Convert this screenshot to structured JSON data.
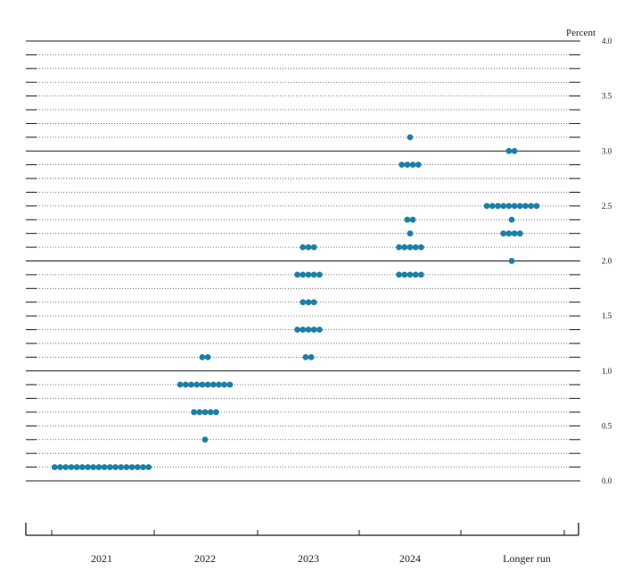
{
  "chart_data": {
    "type": "scatter",
    "title": "",
    "ylabel": "Percent",
    "xlabel": "",
    "ylim": [
      0,
      4
    ],
    "y_ticks": [
      "0.0",
      "0.5",
      "1.0",
      "1.5",
      "2.0",
      "2.5",
      "3.0",
      "3.5",
      "4.0"
    ],
    "minor_step": 0.125,
    "solid_gridlines_at": [
      0,
      1,
      2,
      3,
      4
    ],
    "categories": [
      "2021",
      "2022",
      "2023",
      "2024",
      "Longer run"
    ],
    "dot_color": "#1b7fa6",
    "series": [
      {
        "category": "2021",
        "points": [
          {
            "y": 0.125,
            "count": 18
          }
        ]
      },
      {
        "category": "2022",
        "points": [
          {
            "y": 0.375,
            "count": 1
          },
          {
            "y": 0.625,
            "count": 5
          },
          {
            "y": 0.875,
            "count": 10
          },
          {
            "y": 1.125,
            "count": 2
          }
        ]
      },
      {
        "category": "2023",
        "points": [
          {
            "y": 1.125,
            "count": 2
          },
          {
            "y": 1.375,
            "count": 5
          },
          {
            "y": 1.625,
            "count": 3
          },
          {
            "y": 1.875,
            "count": 5
          },
          {
            "y": 2.125,
            "count": 3
          }
        ]
      },
      {
        "category": "2024",
        "points": [
          {
            "y": 1.875,
            "count": 5
          },
          {
            "y": 2.125,
            "count": 5
          },
          {
            "y": 2.25,
            "count": 1
          },
          {
            "y": 2.375,
            "count": 2
          },
          {
            "y": 2.875,
            "count": 4
          },
          {
            "y": 3.125,
            "count": 1
          }
        ]
      },
      {
        "category": "Longer run",
        "points": [
          {
            "y": 2.0,
            "count": 1
          },
          {
            "y": 2.25,
            "count": 4
          },
          {
            "y": 2.375,
            "count": 1
          },
          {
            "y": 2.5,
            "count": 10
          },
          {
            "y": 3.0,
            "count": 2
          }
        ]
      }
    ]
  }
}
